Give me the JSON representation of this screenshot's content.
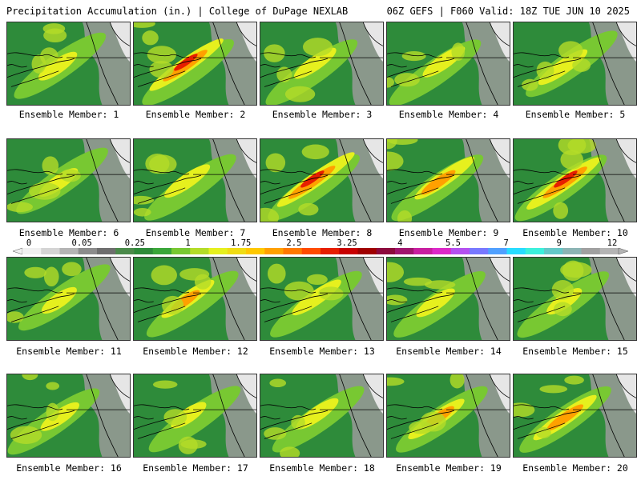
{
  "header": {
    "left": "Precipitation Accumulation (in.) | College of DuPage NEXLAB",
    "right": "06Z GEFS | F060 Valid: 18Z TUE JUN 10 2025"
  },
  "members": [
    {
      "label": "Ensemble Member: 1",
      "intensity": 0.35
    },
    {
      "label": "Ensemble Member: 2",
      "intensity": 0.85
    },
    {
      "label": "Ensemble Member: 3",
      "intensity": 0.4
    },
    {
      "label": "Ensemble Member: 4",
      "intensity": 0.4
    },
    {
      "label": "Ensemble Member: 5",
      "intensity": 0.5
    },
    {
      "label": "Ensemble Member: 6",
      "intensity": 0.35
    },
    {
      "label": "Ensemble Member: 7",
      "intensity": 0.45
    },
    {
      "label": "Ensemble Member: 8",
      "intensity": 0.9
    },
    {
      "label": "Ensemble Member: 9",
      "intensity": 0.65
    },
    {
      "label": "Ensemble Member: 10",
      "intensity": 0.85
    },
    {
      "label": "Ensemble Member: 11",
      "intensity": 0.3
    },
    {
      "label": "Ensemble Member: 12",
      "intensity": 0.55
    },
    {
      "label": "Ensemble Member: 13",
      "intensity": 0.5
    },
    {
      "label": "Ensemble Member: 14",
      "intensity": 0.35
    },
    {
      "label": "Ensemble Member: 15",
      "intensity": 0.3
    },
    {
      "label": "Ensemble Member: 16",
      "intensity": 0.35
    },
    {
      "label": "Ensemble Member: 17",
      "intensity": 0.3
    },
    {
      "label": "Ensemble Member: 18",
      "intensity": 0.4
    },
    {
      "label": "Ensemble Member: 19",
      "intensity": 0.6
    },
    {
      "label": "Ensemble Member: 20",
      "intensity": 0.7
    }
  ],
  "colorbar": {
    "labels": [
      "0",
      "0.05",
      "0.25",
      "1",
      "1.75",
      "2.5",
      "3.25",
      "4",
      "5.5",
      "7",
      "9",
      "12"
    ],
    "colors": [
      "#f0f0f0",
      "#d4d4d4",
      "#b4b4b4",
      "#8c8c8c",
      "#6e6e6e",
      "#4b8a4b",
      "#2e8b3a",
      "#3aa63a",
      "#78c832",
      "#b4dc28",
      "#e6f01e",
      "#f0dc14",
      "#ffc800",
      "#ffa000",
      "#ff7800",
      "#ff4b00",
      "#e61e00",
      "#c80000",
      "#a00000",
      "#8c0a3c",
      "#a0146e",
      "#c81ea0",
      "#dc28c8",
      "#b450f0",
      "#7878ff",
      "#50a0ff",
      "#28dcff",
      "#3cf0dc",
      "#64c8c8",
      "#8cb4b4",
      "#a0a0a0",
      "#b4b4b4"
    ]
  }
}
